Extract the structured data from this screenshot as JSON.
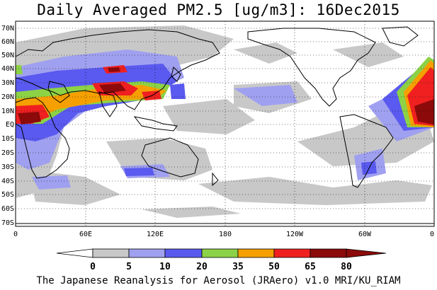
{
  "title": "Daily Averaged PM2.5 [ug/m3]: 16Dec2015",
  "footer": "The Japanese Reanalysis for Aerosol (JRAero) v1.0 MRI/KU_RIAM",
  "map": {
    "lat_labels": [
      "70N",
      "60N",
      "50N",
      "40N",
      "30N",
      "20N",
      "10N",
      "EQ",
      "10S",
      "20S",
      "30S",
      "40S",
      "50S",
      "60S",
      "70S"
    ],
    "lon_labels": [
      "0",
      "60E",
      "120E",
      "180",
      "120W",
      "60W",
      "0"
    ],
    "grid": true
  },
  "colorbar": {
    "levels": [
      "0",
      "5",
      "10",
      "20",
      "35",
      "50",
      "65",
      "80"
    ],
    "colors": [
      "#ffffff",
      "#c8c8c8",
      "#a0a0f0",
      "#5a5af0",
      "#8cd246",
      "#f5a000",
      "#f02020",
      "#8c0a0a"
    ]
  }
}
